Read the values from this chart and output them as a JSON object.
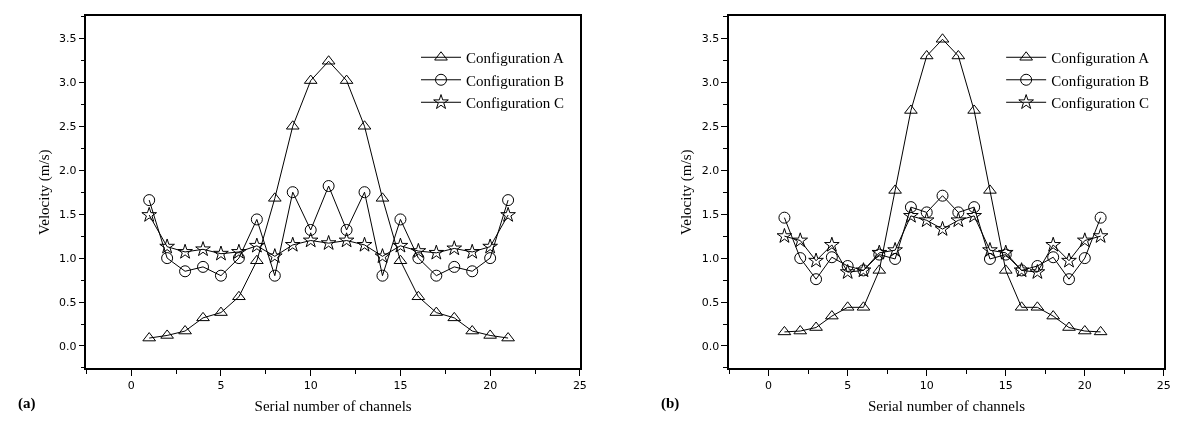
{
  "chart_data": [
    {
      "type": "line",
      "xlabel": "Serial number of channels",
      "ylabel": "Velocity (m/s)",
      "annotations": [
        "(a)"
      ],
      "x": [
        1,
        2,
        3,
        4,
        5,
        6,
        7,
        8,
        9,
        10,
        11,
        12,
        13,
        14,
        15,
        16,
        17,
        18,
        19,
        20,
        21
      ],
      "series": [
        {
          "name": "Configuration A",
          "color": "#000000",
          "marker": "triangle",
          "values": [
            0.09,
            0.12,
            0.17,
            0.32,
            0.38,
            0.56,
            0.97,
            1.68,
            2.5,
            3.02,
            3.24,
            3.02,
            2.5,
            1.68,
            0.97,
            0.56,
            0.38,
            0.32,
            0.17,
            0.12,
            0.09
          ]
        },
        {
          "name": "Configuration B",
          "color": "#000000",
          "marker": "circle",
          "values": [
            1.66,
            1.0,
            0.85,
            0.9,
            0.8,
            1.0,
            1.44,
            0.8,
            1.75,
            1.32,
            1.82,
            1.32,
            1.75,
            0.8,
            1.44,
            1.0,
            0.8,
            0.9,
            0.85,
            1.0,
            1.66
          ]
        },
        {
          "name": "Configuration C",
          "color": "#000000",
          "marker": "star",
          "values": [
            1.49,
            1.13,
            1.07,
            1.1,
            1.05,
            1.07,
            1.14,
            1.02,
            1.15,
            1.2,
            1.17,
            1.2,
            1.15,
            1.02,
            1.14,
            1.08,
            1.06,
            1.11,
            1.07,
            1.13,
            1.49
          ]
        }
      ],
      "xlim": [
        -2.5,
        25
      ],
      "xticks": [
        0,
        5,
        10,
        15,
        20,
        25
      ],
      "ylim": [
        -0.25,
        3.75
      ],
      "yticks": [
        {
          "value": 0,
          "label": "0.0"
        },
        {
          "value": 0.5,
          "label": "0.5"
        },
        {
          "value": 1,
          "label": "1.0"
        },
        {
          "value": 1.5,
          "label": "1.5"
        },
        {
          "value": 2,
          "label": "2.0"
        },
        {
          "value": 2.5,
          "label": "2.5"
        },
        {
          "value": 3,
          "label": "3.0"
        },
        {
          "value": 3.5,
          "label": "3.5"
        }
      ],
      "legend": "top right",
      "line_style": "solid"
    },
    {
      "type": "line",
      "xlabel": "Serial number of channels",
      "ylabel": "Velocity (m/s)",
      "annotations": [
        "(b)"
      ],
      "x": [
        1,
        2,
        3,
        4,
        5,
        6,
        7,
        8,
        9,
        10,
        11,
        12,
        13,
        14,
        15,
        16,
        17,
        18,
        19,
        20,
        21
      ],
      "series": [
        {
          "name": "Configuration A",
          "color": "#000000",
          "marker": "triangle",
          "values": [
            0.16,
            0.17,
            0.21,
            0.34,
            0.44,
            0.44,
            0.86,
            1.77,
            2.68,
            3.3,
            3.49,
            3.3,
            2.68,
            1.77,
            0.86,
            0.44,
            0.44,
            0.34,
            0.21,
            0.17,
            0.16
          ]
        },
        {
          "name": "Configuration B",
          "color": "#000000",
          "marker": "circle",
          "values": [
            1.46,
            1.0,
            0.76,
            1.01,
            0.91,
            0.86,
            1.04,
            0.99,
            1.58,
            1.52,
            1.71,
            1.52,
            1.58,
            0.99,
            1.04,
            0.86,
            0.91,
            1.01,
            0.76,
            1.0,
            1.46
          ]
        },
        {
          "name": "Configuration C",
          "color": "#000000",
          "marker": "star",
          "values": [
            1.25,
            1.2,
            0.97,
            1.15,
            0.84,
            0.86,
            1.06,
            1.09,
            1.48,
            1.43,
            1.33,
            1.43,
            1.48,
            1.09,
            1.06,
            0.86,
            0.84,
            1.15,
            0.97,
            1.2,
            1.25
          ]
        }
      ],
      "xlim": [
        -2.5,
        25
      ],
      "xticks": [
        0,
        5,
        10,
        15,
        20,
        25
      ],
      "ylim": [
        -0.25,
        3.75
      ],
      "yticks": [
        {
          "value": 0,
          "label": "0.0"
        },
        {
          "value": 0.5,
          "label": "0.5"
        },
        {
          "value": 1,
          "label": "1.0"
        },
        {
          "value": 1.5,
          "label": "1.5"
        },
        {
          "value": 2,
          "label": "2.0"
        },
        {
          "value": 2.5,
          "label": "2.5"
        },
        {
          "value": 3,
          "label": "3.0"
        },
        {
          "value": 3.5,
          "label": "3.5"
        }
      ],
      "legend": "top right",
      "line_style": "solid"
    }
  ]
}
